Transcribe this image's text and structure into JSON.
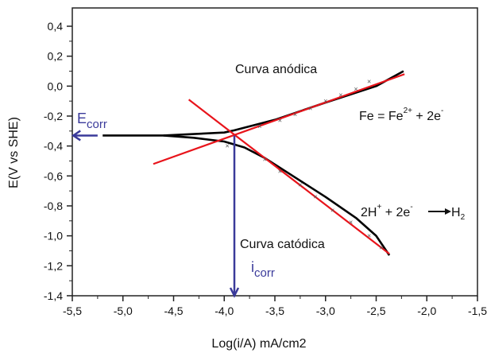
{
  "chart_data": {
    "type": "line",
    "title": "",
    "xlabel": "Log(i/A) mA/cm2",
    "ylabel": "E(V vs SHE)",
    "xlim": [
      -5.5,
      -1.5
    ],
    "ylim": [
      -1.4,
      0.52
    ],
    "xticks": [
      -5.5,
      -5.0,
      -4.5,
      -4.0,
      -3.5,
      -3.0,
      -2.5,
      -2.0,
      -1.5
    ],
    "xtick_labels": [
      "-5,5",
      "-5,0",
      "-4,5",
      "-4,0",
      "-3,5",
      "-3,0",
      "-2,5",
      "-2,0",
      "-1,5"
    ],
    "yticks": [
      0.4,
      0.2,
      0.0,
      -0.2,
      -0.4,
      -0.6,
      -0.8,
      -1.0,
      -1.2,
      -1.4
    ],
    "ytick_labels": [
      "0,4",
      "0,2",
      "0,0",
      "-0,2",
      "-0,4",
      "-0,6",
      "-0,8",
      "-1,0",
      "-1,2",
      "-1,4"
    ],
    "grid": false,
    "colors": {
      "curve": "#000000",
      "tafel": "#e8141b",
      "annotation": "#3a3a9a"
    },
    "series": [
      {
        "role": "anodic-curve",
        "x": [
          -5.2,
          -4.6,
          -4.3,
          -4.0,
          -3.9,
          -3.7,
          -3.5,
          -3.0,
          -2.5,
          -2.23
        ],
        "y": [
          -0.33,
          -0.33,
          -0.32,
          -0.31,
          -0.295,
          -0.26,
          -0.225,
          -0.11,
          0.0,
          0.1
        ]
      },
      {
        "role": "cathodic-curve",
        "x": [
          -4.6,
          -4.3,
          -4.0,
          -3.8,
          -3.6,
          -3.3,
          -3.0,
          -2.7,
          -2.5,
          -2.37
        ],
        "y": [
          -0.33,
          -0.345,
          -0.37,
          -0.41,
          -0.48,
          -0.61,
          -0.74,
          -0.88,
          -1.0,
          -1.13
        ]
      },
      {
        "role": "anodic-tafel",
        "x": [
          -4.7,
          -2.22
        ],
        "y": [
          -0.52,
          0.08
        ]
      },
      {
        "role": "cathodic-tafel",
        "x": [
          -4.35,
          -2.37
        ],
        "y": [
          -0.09,
          -1.12
        ]
      },
      {
        "role": "markers",
        "x": [
          -3.65,
          -3.45,
          -3.3,
          -3.15,
          -3.0,
          -2.85,
          -2.7,
          -2.57,
          -3.97,
          -3.6,
          -3.45,
          -3.25,
          -3.1,
          -2.93,
          -2.75,
          -2.57,
          -2.45
        ],
        "y": [
          -0.27,
          -0.23,
          -0.19,
          -0.15,
          -0.1,
          -0.06,
          -0.02,
          0.03,
          -0.4,
          -0.49,
          -0.57,
          -0.66,
          -0.74,
          -0.83,
          -0.91,
          -1.0,
          -1.08
        ]
      }
    ],
    "ecorr": {
      "label": "E",
      "sub": "corr",
      "value": -0.33,
      "from_x": -5.25
    },
    "icorr": {
      "label": "i",
      "sub": "corr",
      "value": -3.9
    },
    "annotations": {
      "anodic": "Curva anódica",
      "cathodic": "Curva catódica",
      "anodic_reaction": {
        "a": "Fe = Fe",
        "sup1": "2+",
        "b": " +  2e",
        "sup2": "-"
      },
      "cathodic_reaction": {
        "a": "2H",
        "sup1": "+",
        "b": " +  2e",
        "sup2": "-",
        "c": "H",
        "sub": "2"
      }
    }
  }
}
